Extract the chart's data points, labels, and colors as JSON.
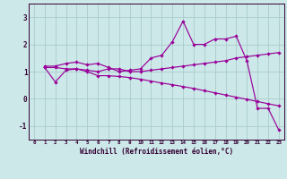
{
  "background_color": "#cce8e8",
  "grid_color": "#aacccc",
  "line_color": "#990099",
  "xlabel": "Windchill (Refroidissement éolien,°C)",
  "xlim": [
    -0.5,
    23.5
  ],
  "ylim": [
    -1.5,
    3.5
  ],
  "yticks": [
    -1,
    0,
    1,
    2,
    3
  ],
  "xticks": [
    0,
    1,
    2,
    3,
    4,
    5,
    6,
    7,
    8,
    9,
    10,
    11,
    12,
    13,
    14,
    15,
    16,
    17,
    18,
    19,
    20,
    21,
    22,
    23
  ],
  "line1_x": [
    1,
    2,
    3,
    4,
    5,
    6,
    7,
    8,
    9,
    10,
    11,
    12,
    13,
    14,
    15,
    16,
    17,
    18,
    19,
    20,
    21,
    22,
    23
  ],
  "line1_y": [
    1.2,
    1.2,
    1.3,
    1.35,
    1.25,
    1.3,
    1.15,
    1.0,
    1.05,
    1.1,
    1.5,
    1.6,
    2.1,
    2.85,
    2.0,
    2.0,
    2.2,
    2.2,
    2.3,
    1.4,
    -0.35,
    -0.35,
    -1.15
  ],
  "line2_x": [
    1,
    2,
    3,
    4,
    5,
    6,
    7,
    8,
    9,
    10,
    11,
    12,
    13,
    14,
    15,
    16,
    17,
    18,
    19,
    20,
    21,
    22,
    23
  ],
  "line2_y": [
    1.15,
    1.15,
    1.1,
    1.1,
    1.05,
    1.0,
    1.1,
    1.1,
    1.0,
    1.0,
    1.05,
    1.1,
    1.15,
    1.2,
    1.25,
    1.3,
    1.35,
    1.4,
    1.5,
    1.55,
    1.6,
    1.65,
    1.7
  ],
  "line3_x": [
    1,
    2,
    3,
    4,
    5,
    6,
    7,
    8,
    9,
    10,
    11,
    12,
    13,
    14,
    15,
    16,
    17,
    18,
    19,
    20,
    21,
    22,
    23
  ],
  "line3_y": [
    1.15,
    0.62,
    1.05,
    1.1,
    1.0,
    0.85,
    0.85,
    0.82,
    0.78,
    0.72,
    0.65,
    0.58,
    0.52,
    0.45,
    0.38,
    0.3,
    0.22,
    0.14,
    0.06,
    -0.02,
    -0.1,
    -0.18,
    -0.26
  ],
  "spine_color": "#330033"
}
